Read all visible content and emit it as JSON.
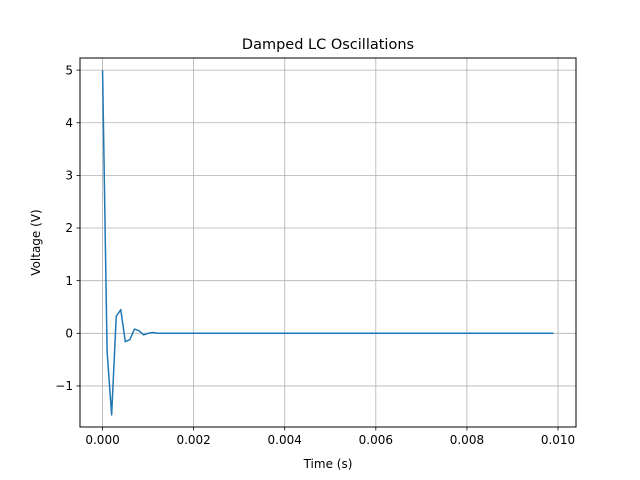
{
  "chart_data": {
    "type": "line",
    "title": "Damped LC Oscillations",
    "xlabel": "Time (s)",
    "ylabel": "Voltage (V)",
    "xlim": [
      -0.000495,
      0.010395
    ],
    "ylim": [
      -1.78,
      5.23
    ],
    "grid": true,
    "x_ticks": [
      0.0,
      0.002,
      0.004,
      0.006,
      0.008,
      0.01
    ],
    "x_tick_labels": [
      "0.000",
      "0.002",
      "0.004",
      "0.006",
      "0.008",
      "0.010"
    ],
    "y_ticks": [
      -1,
      0,
      1,
      2,
      3,
      4,
      5
    ],
    "y_tick_labels": [
      "−1",
      "0",
      "1",
      "2",
      "3",
      "4",
      "5"
    ],
    "colors": {
      "series": "#1f77b4",
      "grid": "#b0b0b0",
      "axes": "#000000"
    },
    "series": [
      {
        "x": [
          0.0,
          0.0001,
          0.0002,
          0.0003,
          0.0004,
          0.0005,
          0.0006,
          0.0007,
          0.0008,
          0.0009,
          0.001,
          0.0011,
          0.0012,
          0.0013,
          0.0014,
          0.002,
          0.003,
          0.004,
          0.005,
          0.006,
          0.007,
          0.008,
          0.009,
          0.0099
        ],
        "values": [
          5.0,
          -0.35,
          -1.55,
          0.32,
          0.45,
          -0.16,
          -0.12,
          0.08,
          0.05,
          -0.03,
          0.0,
          0.015,
          0.0,
          0.0,
          0.0,
          0.0,
          0.0,
          0.0,
          0.0,
          0.0,
          0.0,
          0.0,
          0.0,
          0.0
        ]
      }
    ]
  }
}
